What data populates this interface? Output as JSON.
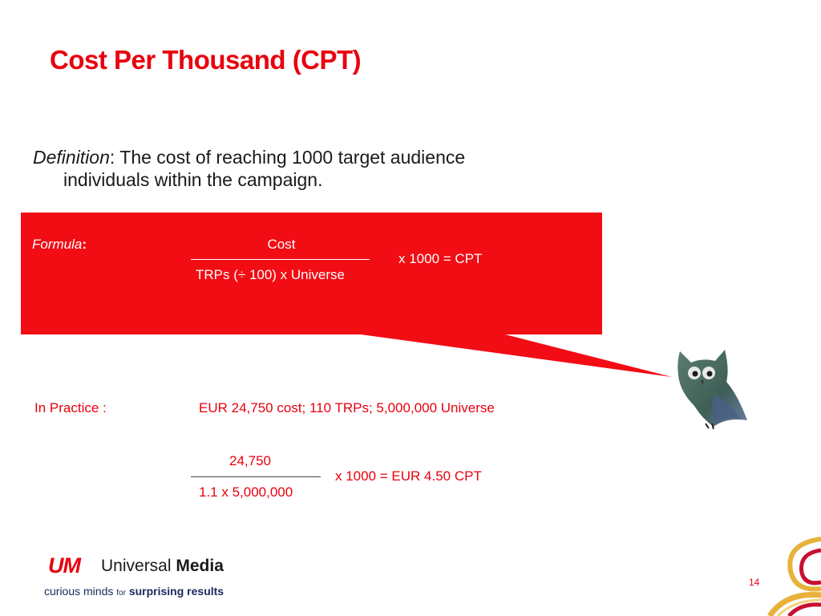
{
  "slide": {
    "title": "Cost Per Thousand (CPT)",
    "page_number": "14"
  },
  "definition": {
    "label": "Definition",
    "separator": ": ",
    "line1": "The cost of reaching 1000 target audience",
    "line2": "individuals within the campaign."
  },
  "formula": {
    "label": "Formula",
    "colon": ":",
    "numerator": "Cost",
    "denominator": "TRPs (÷ 100) x Universe",
    "result": "x 1000 = CPT"
  },
  "practice": {
    "label": "In Practice :",
    "text": "EUR 24,750 cost; 110 TRPs; 5,000,000 Universe",
    "numerator": "24,750",
    "denominator": "1.1 x 5,000,000",
    "result": "x 1000 = EUR 4.50 CPT"
  },
  "branding": {
    "logo_mark": "UM",
    "logo_name_regular": "Universal ",
    "logo_name_bold": "Media",
    "tagline_part1": "curious minds ",
    "tagline_small": "for",
    "tagline_part2": " surprising results"
  },
  "colors": {
    "accent": "#e8000e",
    "callout": "#f20c14"
  },
  "icons": [
    "owl-icon",
    "swirl-decoration"
  ]
}
